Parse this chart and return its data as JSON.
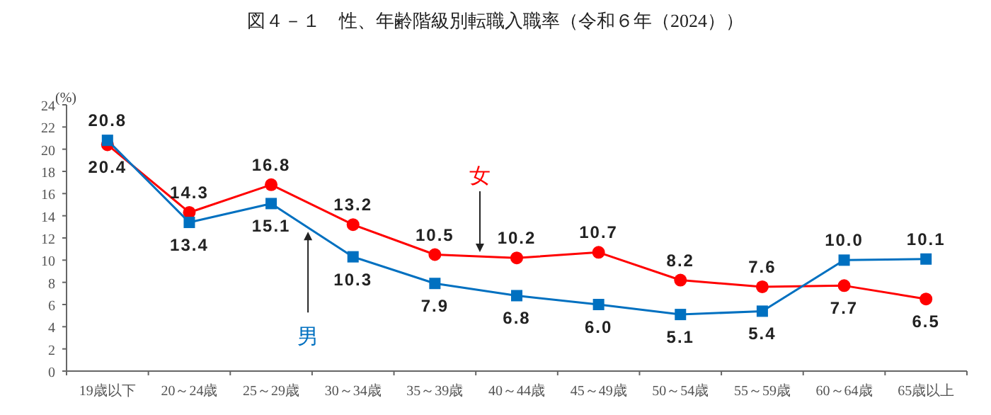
{
  "chart_data": {
    "type": "line",
    "title": "図４－１　性、年齢階級別転職入職率（令和６年（2024））",
    "ylabel": "(%)",
    "categories": [
      "19歳以下",
      "20～24歳",
      "25～29歳",
      "30～34歳",
      "35～39歳",
      "40～44歳",
      "45～49歳",
      "50～54歳",
      "55～59歳",
      "60～64歳",
      "65歳以上"
    ],
    "series": [
      {
        "name": "女",
        "color": "#ff0000",
        "marker": "circle",
        "values": [
          20.4,
          14.3,
          16.8,
          13.2,
          10.5,
          10.2,
          10.7,
          8.2,
          7.6,
          7.7,
          6.5
        ],
        "value_labels": [
          "20.4",
          "14.3",
          "16.8",
          "13.2",
          "10.5",
          "10.2",
          "10.7",
          "8.2",
          "7.6",
          "7.7",
          "6.5"
        ]
      },
      {
        "name": "男",
        "color": "#0070c0",
        "marker": "square",
        "values": [
          20.8,
          13.4,
          15.1,
          10.3,
          7.9,
          6.8,
          6.0,
          5.1,
          5.4,
          10.0,
          10.1
        ],
        "value_labels": [
          "20.8",
          "13.4",
          "15.1",
          "10.3",
          "7.9",
          "6.8",
          "6.0",
          "5.1",
          "5.4",
          "10.0",
          "10.1"
        ]
      }
    ],
    "ylim": [
      0,
      24
    ],
    "yticks": [
      0,
      2,
      4,
      6,
      8,
      10,
      12,
      14,
      16,
      18,
      20,
      22,
      24
    ],
    "grid": false
  }
}
